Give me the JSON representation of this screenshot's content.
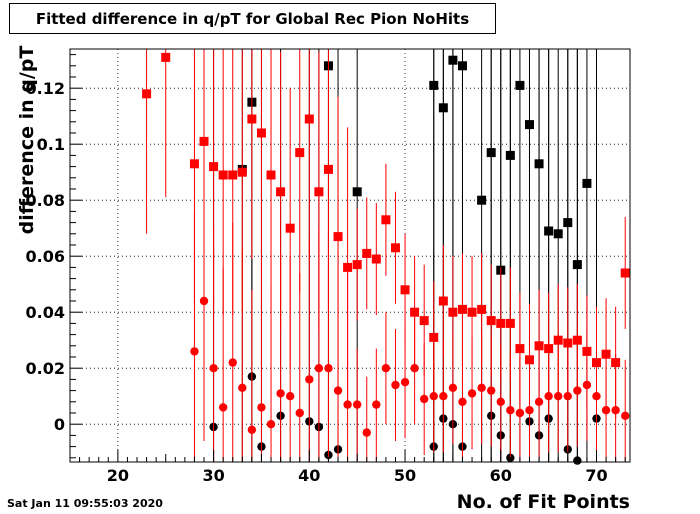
{
  "chart_data": {
    "type": "scatter",
    "title": "Fitted difference in q/pT for Global Rec Pion NoHits",
    "xlabel": "No. of Fit Points",
    "ylabel": "difference in q/pT",
    "xlim": [
      15,
      73.5
    ],
    "ylim": [
      -0.0135,
      0.134
    ],
    "x_ticks": [
      "20",
      "30",
      "40",
      "50",
      "60",
      "70"
    ],
    "y_ticks": [
      "0",
      "0.02",
      "0.04",
      "0.06",
      "0.08",
      "0.1",
      "0.12"
    ],
    "grid": true,
    "timestamp": "Sat Jan 11 09:55:03 2020",
    "series": [
      {
        "color": "#000000",
        "marker": "square",
        "error_bars": true,
        "points": [
          [
            33,
            0.091
          ],
          [
            34,
            0.115
          ],
          [
            42,
            0.128
          ],
          [
            45,
            0.083
          ],
          [
            53,
            0.121
          ],
          [
            54,
            0.113
          ],
          [
            55,
            0.13
          ],
          [
            56,
            0.128
          ],
          [
            58,
            0.08
          ],
          [
            59,
            0.097
          ],
          [
            60,
            0.055
          ],
          [
            61,
            0.096
          ],
          [
            62,
            0.121
          ],
          [
            63,
            0.107
          ],
          [
            64,
            0.093
          ],
          [
            65,
            0.069
          ],
          [
            66,
            0.068
          ],
          [
            67,
            0.072
          ],
          [
            68,
            0.057
          ],
          [
            69,
            0.086
          ]
        ]
      },
      {
        "color": "#000000",
        "marker": "circle",
        "error_bars": true,
        "points": [
          [
            30,
            -0.001
          ],
          [
            34,
            0.017
          ],
          [
            35,
            -0.008
          ],
          [
            37,
            0.003
          ],
          [
            40,
            0.001
          ],
          [
            41,
            -0.001
          ],
          [
            42,
            -0.011
          ],
          [
            43,
            -0.009
          ],
          [
            53,
            -0.008
          ],
          [
            54,
            0.002
          ],
          [
            55,
            0.0
          ],
          [
            56,
            -0.008
          ],
          [
            59,
            0.003
          ],
          [
            60,
            -0.004
          ],
          [
            61,
            -0.012
          ],
          [
            63,
            0.001
          ],
          [
            64,
            -0.004
          ],
          [
            65,
            0.002
          ],
          [
            67,
            -0.009
          ],
          [
            68,
            -0.013
          ],
          [
            70,
            0.002
          ]
        ]
      },
      {
        "color": "#ff0000",
        "marker": "square",
        "error_bars": true,
        "points": [
          [
            23,
            0.118
          ],
          [
            25,
            0.131
          ],
          [
            28,
            0.093
          ],
          [
            29,
            0.101
          ],
          [
            30,
            0.092
          ],
          [
            31,
            0.089
          ],
          [
            32,
            0.089
          ],
          [
            33,
            0.09
          ],
          [
            34,
            0.109
          ],
          [
            35,
            0.104
          ],
          [
            36,
            0.089
          ],
          [
            37,
            0.083
          ],
          [
            38,
            0.07
          ],
          [
            39,
            0.097
          ],
          [
            40,
            0.109
          ],
          [
            41,
            0.083
          ],
          [
            42,
            0.091
          ],
          [
            43,
            0.067
          ],
          [
            44,
            0.056
          ],
          [
            45,
            0.057
          ],
          [
            46,
            0.061
          ],
          [
            47,
            0.059
          ],
          [
            48,
            0.073
          ],
          [
            49,
            0.063
          ],
          [
            50,
            0.048
          ],
          [
            51,
            0.04
          ],
          [
            52,
            0.037
          ],
          [
            53,
            0.031
          ],
          [
            54,
            0.044
          ],
          [
            55,
            0.04
          ],
          [
            56,
            0.041
          ],
          [
            57,
            0.04
          ],
          [
            58,
            0.041
          ],
          [
            59,
            0.037
          ],
          [
            60,
            0.036
          ],
          [
            61,
            0.036
          ],
          [
            62,
            0.027
          ],
          [
            63,
            0.023
          ],
          [
            64,
            0.028
          ],
          [
            65,
            0.027
          ],
          [
            66,
            0.03
          ],
          [
            67,
            0.029
          ],
          [
            68,
            0.03
          ],
          [
            69,
            0.026
          ],
          [
            70,
            0.022
          ],
          [
            71,
            0.025
          ],
          [
            72,
            0.022
          ],
          [
            73,
            0.054
          ]
        ]
      },
      {
        "color": "#ff0000",
        "marker": "circle",
        "error_bars": true,
        "points": [
          [
            28,
            0.026
          ],
          [
            29,
            0.044
          ],
          [
            30,
            0.02
          ],
          [
            31,
            0.006
          ],
          [
            32,
            0.022
          ],
          [
            33,
            0.013
          ],
          [
            34,
            -0.002
          ],
          [
            35,
            0.006
          ],
          [
            36,
            0.0
          ],
          [
            37,
            0.011
          ],
          [
            38,
            0.01
          ],
          [
            39,
            0.004
          ],
          [
            40,
            0.016
          ],
          [
            41,
            0.02
          ],
          [
            42,
            0.02
          ],
          [
            43,
            0.012
          ],
          [
            44,
            0.007
          ],
          [
            45,
            0.007
          ],
          [
            46,
            -0.003
          ],
          [
            47,
            0.007
          ],
          [
            48,
            0.02
          ],
          [
            49,
            0.014
          ],
          [
            50,
            0.015
          ],
          [
            51,
            0.02
          ],
          [
            52,
            0.009
          ],
          [
            53,
            0.01
          ],
          [
            54,
            0.01
          ],
          [
            55,
            0.013
          ],
          [
            56,
            0.008
          ],
          [
            57,
            0.011
          ],
          [
            58,
            0.013
          ],
          [
            59,
            0.012
          ],
          [
            60,
            0.008
          ],
          [
            61,
            0.005
          ],
          [
            62,
            0.004
          ],
          [
            63,
            0.005
          ],
          [
            64,
            0.008
          ],
          [
            65,
            0.01
          ],
          [
            66,
            0.01
          ],
          [
            67,
            0.01
          ],
          [
            68,
            0.012
          ],
          [
            69,
            0.014
          ],
          [
            70,
            0.01
          ],
          [
            71,
            0.005
          ],
          [
            72,
            0.005
          ],
          [
            73,
            0.003
          ]
        ]
      }
    ]
  }
}
